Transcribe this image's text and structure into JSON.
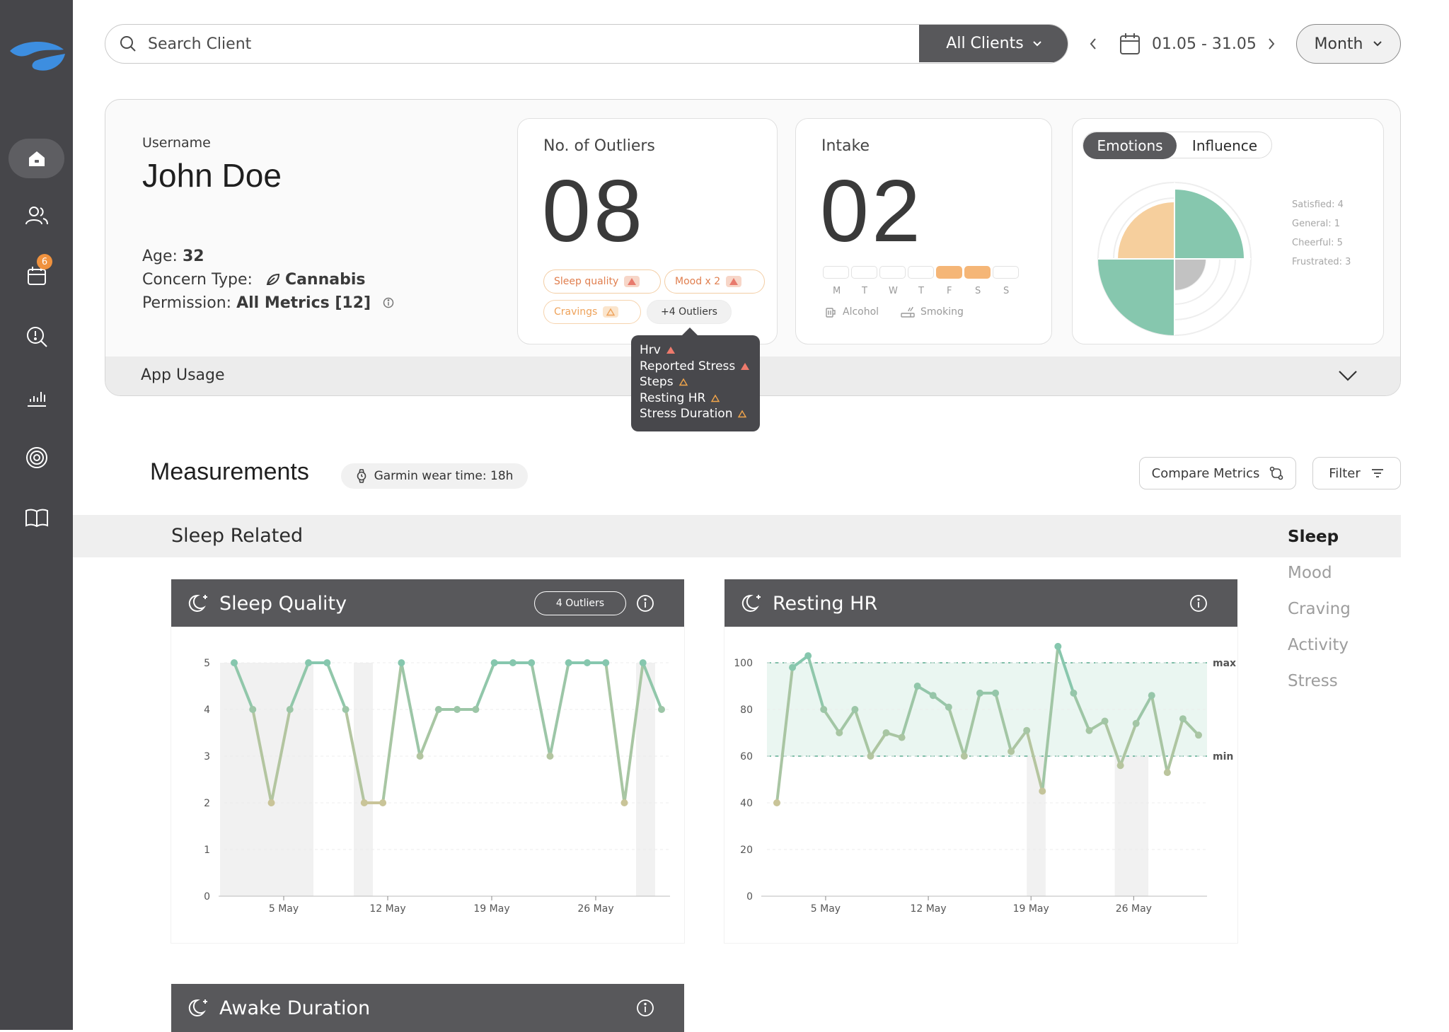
{
  "app": {
    "accent": "#7cc3a9",
    "warm": "#f5b677",
    "sidebar_bg": "#46464a"
  },
  "sidebar": {
    "logo": "brand-logo",
    "items": [
      {
        "name": "home-icon",
        "active": true
      },
      {
        "name": "clients-icon"
      },
      {
        "name": "calendar-icon",
        "badge": "6"
      },
      {
        "name": "insights-icon"
      },
      {
        "name": "analytics-icon"
      },
      {
        "name": "goals-icon"
      },
      {
        "name": "library-icon"
      }
    ]
  },
  "topbar": {
    "search_placeholder": "Search Client",
    "clients_filter": "All Clients",
    "date_range": "01.05 - 31.05",
    "period": "Month"
  },
  "client": {
    "username_label": "Username",
    "name": "John Doe",
    "age_label": "Age:",
    "age": "32",
    "concern_label": "Concern Type:",
    "concern": "Cannabis",
    "permission_label": "Permission:",
    "permission": "All Metrics [12]",
    "app_usage": "App Usage"
  },
  "outliers": {
    "title": "No. of Outliers",
    "count": "08",
    "chips": [
      "Sleep quality",
      "Mood x 2",
      "Cravings"
    ],
    "more": "+4 Outliers",
    "tooltip": [
      "Hrv",
      "Reported Stress",
      "Steps",
      "Resting HR",
      "Stress Duration"
    ]
  },
  "intake": {
    "title": "Intake",
    "count": "02",
    "days": [
      "M",
      "T",
      "W",
      "T",
      "F",
      "S",
      "S"
    ],
    "active_days": [
      4,
      5
    ],
    "legend": [
      "Alcohol",
      "Smoking"
    ]
  },
  "emotions": {
    "tabs": [
      "Emotions",
      "Influence"
    ],
    "active_tab": 0,
    "legend": [
      "Satisfied: 4",
      "General: 1",
      "Cheerful: 5",
      "Frustrated: 3"
    ],
    "values": {
      "Satisfied": 4,
      "General": 1,
      "Cheerful": 5,
      "Frustrated": 3
    }
  },
  "measurements": {
    "title": "Measurements",
    "wear_time": "Garmin wear time: 18h",
    "compare": "Compare Metrics",
    "filter": "Filter",
    "section": "Sleep Related",
    "categories": [
      "Sleep",
      "Mood",
      "Craving",
      "Activity",
      "Stress"
    ],
    "active_category": 0
  },
  "cards": {
    "sleep": {
      "title": "Sleep Quality",
      "outliers": "4 Outliers"
    },
    "hr": {
      "title": "Resting HR"
    },
    "awake": {
      "title": "Awake Duration"
    }
  },
  "chart_data": [
    {
      "type": "line",
      "title": "Sleep Quality",
      "x_ticks": [
        "5 May",
        "12 May",
        "19 May",
        "26 May"
      ],
      "y_ticks": [
        "0",
        "1",
        "2",
        "3",
        "4",
        "5"
      ],
      "ylim": [
        0,
        5
      ],
      "x": [
        1,
        2,
        3,
        4,
        5,
        6,
        7,
        8,
        9,
        10,
        11,
        12,
        13,
        14,
        15,
        16,
        17,
        18,
        19,
        20,
        21,
        22,
        23,
        24,
        25,
        26,
        27,
        28,
        29,
        30,
        31
      ],
      "values": [
        5,
        4,
        2,
        4,
        5,
        5,
        4,
        2,
        2,
        5,
        3,
        4,
        4,
        4,
        5,
        5,
        5,
        3,
        5,
        5,
        5,
        2,
        5,
        4
      ],
      "dates": [
        1,
        2,
        3,
        4,
        5,
        5.5,
        6,
        7,
        7.5,
        8,
        9,
        9.5,
        10,
        11,
        11.8,
        12.5,
        13,
        14,
        14.7,
        15.3,
        16,
        17,
        18,
        18.5
      ],
      "shaded_days": [
        [
          0,
          4
        ],
        [
          5,
          6
        ],
        [
          9,
          10
        ],
        [
          28,
          29
        ]
      ],
      "grid": true
    },
    {
      "type": "line",
      "title": "Resting HR",
      "x_ticks": [
        "5 May",
        "12 May",
        "19 May",
        "26 May"
      ],
      "y_ticks": [
        "0",
        "20",
        "40",
        "60",
        "80",
        "100"
      ],
      "ylim": [
        0,
        100
      ],
      "values": [
        40,
        98,
        103,
        80,
        70,
        80,
        60,
        70,
        68,
        90,
        86,
        81,
        60,
        87,
        87,
        62,
        71,
        45,
        107,
        87,
        71,
        75,
        56,
        74,
        86,
        53,
        76,
        69
      ],
      "reference_lines": {
        "max": 100,
        "min": 60
      },
      "grid": true
    }
  ]
}
